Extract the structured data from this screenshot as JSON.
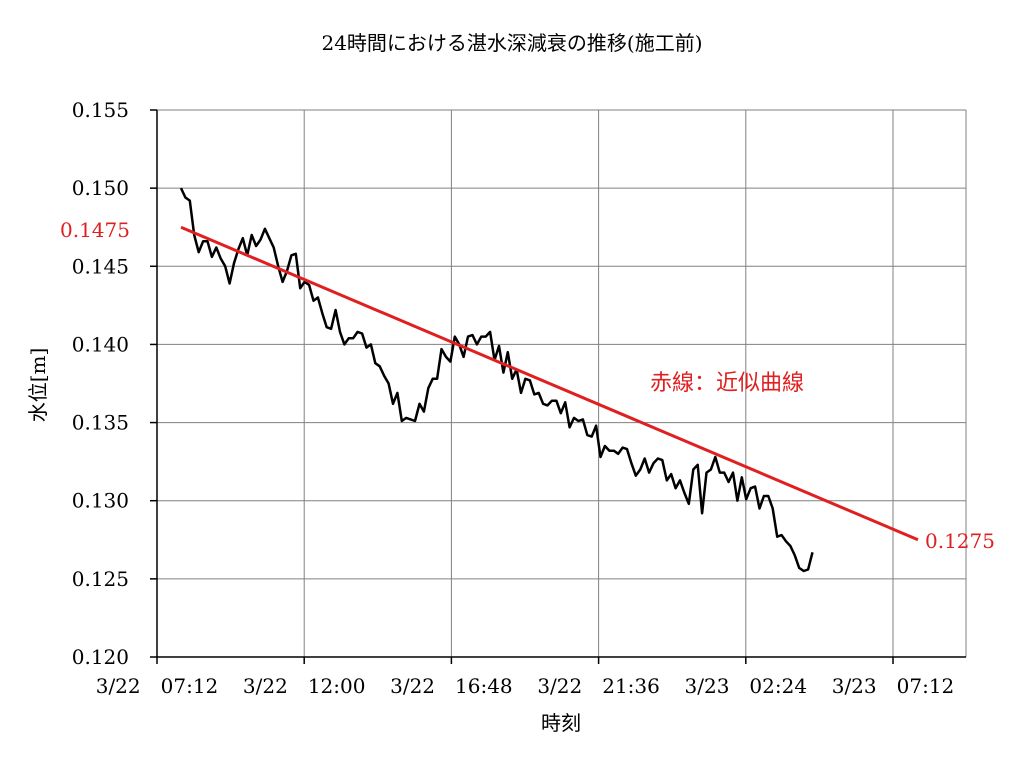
{
  "chart_data": {
    "type": "line",
    "title": "24時間における湛水深減衰の推移(施工前)",
    "xlabel": "時刻",
    "ylabel": "水位[m]",
    "ylim": [
      0.12,
      0.155
    ],
    "y_ticks": [
      "0.120",
      "0.125",
      "0.130",
      "0.135",
      "0.140",
      "0.145",
      "0.150",
      "0.155"
    ],
    "x_ticks": [
      "3/22　07:12",
      "3/22　12:00",
      "3/22　16:48",
      "3/22　21:36",
      "3/23　02:24",
      "3/23　07:12"
    ],
    "x_range_hours": [
      0,
      24
    ],
    "grid": true,
    "colors": {
      "series": "#000000",
      "trend": "#e02020",
      "grid": "#808080"
    },
    "series": [
      {
        "style": "solid-black",
        "interval_hours": 0.144,
        "values": [
          0.15,
          0.1494,
          0.1492,
          0.147,
          0.1459,
          0.1466,
          0.1466,
          0.1456,
          0.1462,
          0.1455,
          0.145,
          0.1439,
          0.1452,
          0.1461,
          0.1468,
          0.1457,
          0.147,
          0.1463,
          0.1467,
          0.1474,
          0.1468,
          0.1462,
          0.145,
          0.144,
          0.1447,
          0.1457,
          0.1458,
          0.1436,
          0.144,
          0.1438,
          0.1428,
          0.143,
          0.142,
          0.1411,
          0.141,
          0.1422,
          0.1408,
          0.14,
          0.1404,
          0.1404,
          0.1408,
          0.1407,
          0.1398,
          0.14,
          0.1388,
          0.1386,
          0.138,
          0.1375,
          0.1362,
          0.1369,
          0.1351,
          0.1353,
          0.1352,
          0.1351,
          0.1362,
          0.1357,
          0.1372,
          0.1378,
          0.1378,
          0.1397,
          0.1392,
          0.1389,
          0.1405,
          0.14,
          0.1392,
          0.1405,
          0.1406,
          0.14,
          0.1405,
          0.1405,
          0.1408,
          0.139,
          0.1399,
          0.1382,
          0.1395,
          0.1378,
          0.1384,
          0.1369,
          0.1378,
          0.1377,
          0.1368,
          0.1369,
          0.1362,
          0.1361,
          0.1364,
          0.1364,
          0.1356,
          0.1363,
          0.1347,
          0.1353,
          0.1351,
          0.1352,
          0.1342,
          0.1341,
          0.1348,
          0.1328,
          0.1335,
          0.1332,
          0.1332,
          0.133,
          0.1334,
          0.1333,
          0.1324,
          0.1316,
          0.132,
          0.1327,
          0.1318,
          0.1324,
          0.1327,
          0.1326,
          0.1313,
          0.1317,
          0.1308,
          0.1313,
          0.1305,
          0.1298,
          0.132,
          0.1323,
          0.1292,
          0.1318,
          0.132,
          0.1328,
          0.1318,
          0.1318,
          0.1312,
          0.1318,
          0.13,
          0.1315,
          0.1301,
          0.1308,
          0.1309,
          0.1295,
          0.1303,
          0.1303,
          0.1295,
          0.1277,
          0.1278,
          0.1274,
          0.1271,
          0.1265,
          0.1257,
          0.1255,
          0.1256,
          0.1267
        ]
      },
      {
        "style": "trend-red",
        "x_hours": [
          0,
          24
        ],
        "values": [
          0.1475,
          0.1275
        ]
      }
    ],
    "annotations": [
      {
        "text": "0.1475",
        "color": "#e02020",
        "anchor": "trend-start"
      },
      {
        "text": "0.1275",
        "color": "#e02020",
        "anchor": "trend-end"
      },
      {
        "text": "赤線：近似曲線",
        "color": "#e02020",
        "anchor": "mid-right"
      }
    ]
  }
}
